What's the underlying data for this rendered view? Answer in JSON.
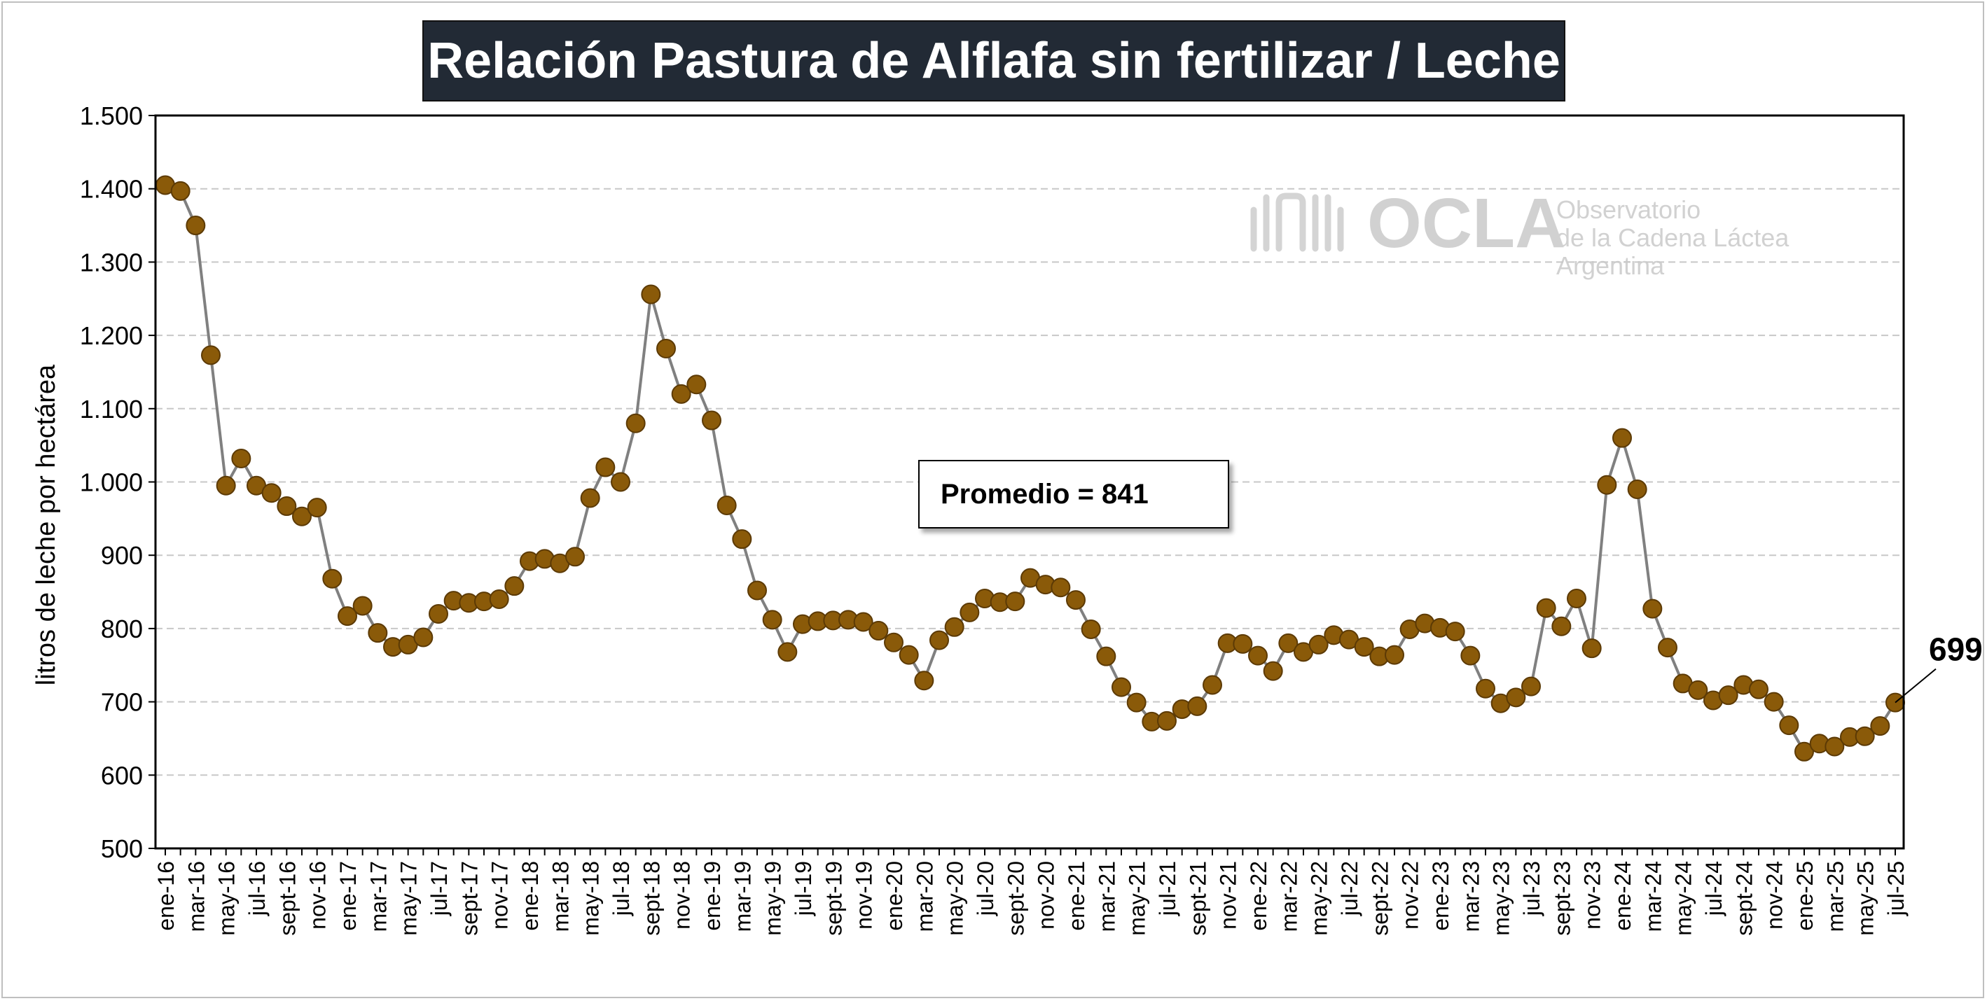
{
  "chart_data": {
    "type": "line",
    "title": "Relación Pastura de Alflafa sin fertilizar / Leche",
    "ylabel": "litros de leche por hectárea",
    "xlabel": "",
    "ylim": [
      500,
      1500
    ],
    "yticks": [
      "500",
      "600",
      "700",
      "800",
      "900",
      "1.000",
      "1.100",
      "1.200",
      "1.300",
      "1.400",
      "1.500"
    ],
    "grid": true,
    "legend": "none",
    "annotation": "Promedio = 841",
    "last_label": "699",
    "tick_labels": [
      "ene-16",
      "mar-16",
      "may-16",
      "jul-16",
      "sept-16",
      "nov-16",
      "ene-17",
      "mar-17",
      "may-17",
      "jul-17",
      "sept-17",
      "nov-17",
      "ene-18",
      "mar-18",
      "may-18",
      "jul-18",
      "sept-18",
      "nov-18",
      "ene-19",
      "mar-19",
      "may-19",
      "jul-19",
      "sept-19",
      "nov-19",
      "ene-20",
      "mar-20",
      "may-20",
      "jul-20",
      "sept-20",
      "nov-20",
      "ene-21",
      "mar-21",
      "may-21",
      "jul-21",
      "sept-21",
      "nov-21",
      "ene-22",
      "mar-22",
      "may-22",
      "jul-22",
      "sept-22",
      "nov-22",
      "ene-23",
      "mar-23",
      "may-23",
      "jul-23",
      "sept-23",
      "nov-23",
      "ene-24",
      "mar-24",
      "may-24",
      "jul-24",
      "sept-24",
      "nov-24",
      "ene-25",
      "mar-25",
      "may-25",
      "jul-25"
    ],
    "x": [
      "ene-16",
      "feb-16",
      "mar-16",
      "abr-16",
      "may-16",
      "jun-16",
      "jul-16",
      "ago-16",
      "sept-16",
      "oct-16",
      "nov-16",
      "dic-16",
      "ene-17",
      "feb-17",
      "mar-17",
      "abr-17",
      "may-17",
      "jun-17",
      "jul-17",
      "ago-17",
      "sept-17",
      "oct-17",
      "nov-17",
      "dic-17",
      "ene-18",
      "feb-18",
      "mar-18",
      "abr-18",
      "may-18",
      "jun-18",
      "jul-18",
      "ago-18",
      "sept-18",
      "oct-18",
      "nov-18",
      "dic-18",
      "ene-19",
      "feb-19",
      "mar-19",
      "abr-19",
      "may-19",
      "jun-19",
      "jul-19",
      "ago-19",
      "sept-19",
      "oct-19",
      "nov-19",
      "dic-19",
      "ene-20",
      "feb-20",
      "mar-20",
      "abr-20",
      "may-20",
      "jun-20",
      "jul-20",
      "ago-20",
      "sept-20",
      "oct-20",
      "nov-20",
      "dic-20",
      "ene-21",
      "feb-21",
      "mar-21",
      "abr-21",
      "may-21",
      "jun-21",
      "jul-21",
      "ago-21",
      "sept-21",
      "oct-21",
      "nov-21",
      "dic-21",
      "ene-22",
      "feb-22",
      "mar-22",
      "abr-22",
      "may-22",
      "jun-22",
      "jul-22",
      "ago-22",
      "sept-22",
      "oct-22",
      "nov-22",
      "dic-22",
      "ene-23",
      "feb-23",
      "mar-23",
      "abr-23",
      "may-23",
      "jun-23",
      "jul-23",
      "ago-23",
      "sept-23",
      "oct-23",
      "nov-23",
      "dic-23",
      "ene-24",
      "feb-24",
      "mar-24",
      "abr-24",
      "may-24",
      "jun-24",
      "jul-24",
      "ago-24",
      "sept-24",
      "oct-24",
      "nov-24",
      "dic-24",
      "ene-25",
      "feb-25",
      "mar-25",
      "abr-25",
      "may-25",
      "jun-25",
      "jul-25"
    ],
    "series": [
      {
        "values": [
          1405,
          1397,
          1350,
          1173,
          995,
          1032,
          995,
          985,
          967,
          953,
          965,
          868,
          817,
          831,
          794,
          775,
          778,
          788,
          820,
          838,
          835,
          837,
          840,
          858,
          892,
          895,
          889,
          898,
          978,
          1020,
          1000,
          1080,
          1256,
          1182,
          1120,
          1133,
          1084,
          968,
          922,
          852,
          812,
          768,
          806,
          810,
          811,
          812,
          809,
          797,
          781,
          764,
          729,
          784,
          802,
          822,
          841,
          836,
          837,
          869,
          860,
          856,
          839,
          799,
          762,
          720,
          699,
          673,
          674,
          690,
          694,
          723,
          780,
          779,
          763,
          742,
          780,
          768,
          778,
          791,
          785,
          775,
          762,
          764,
          799,
          807,
          801,
          796,
          763,
          718,
          698,
          706,
          721,
          828,
          803,
          841,
          773,
          996,
          1060,
          990,
          827,
          774,
          725,
          716,
          702,
          709,
          723,
          717,
          700,
          668,
          632,
          643,
          639,
          652,
          653,
          667,
          699
        ]
      }
    ],
    "colors": {
      "marker_fill": "#8a5a09",
      "marker_stroke": "#5c3a05",
      "line": "#808080",
      "grid": "#c8c8c8",
      "title_bg": "#222a35"
    }
  },
  "logo": {
    "acronym": "OCLA",
    "line1": "Observatorio",
    "line2": "de la Cadena Láctea",
    "line3": "Argentina"
  }
}
